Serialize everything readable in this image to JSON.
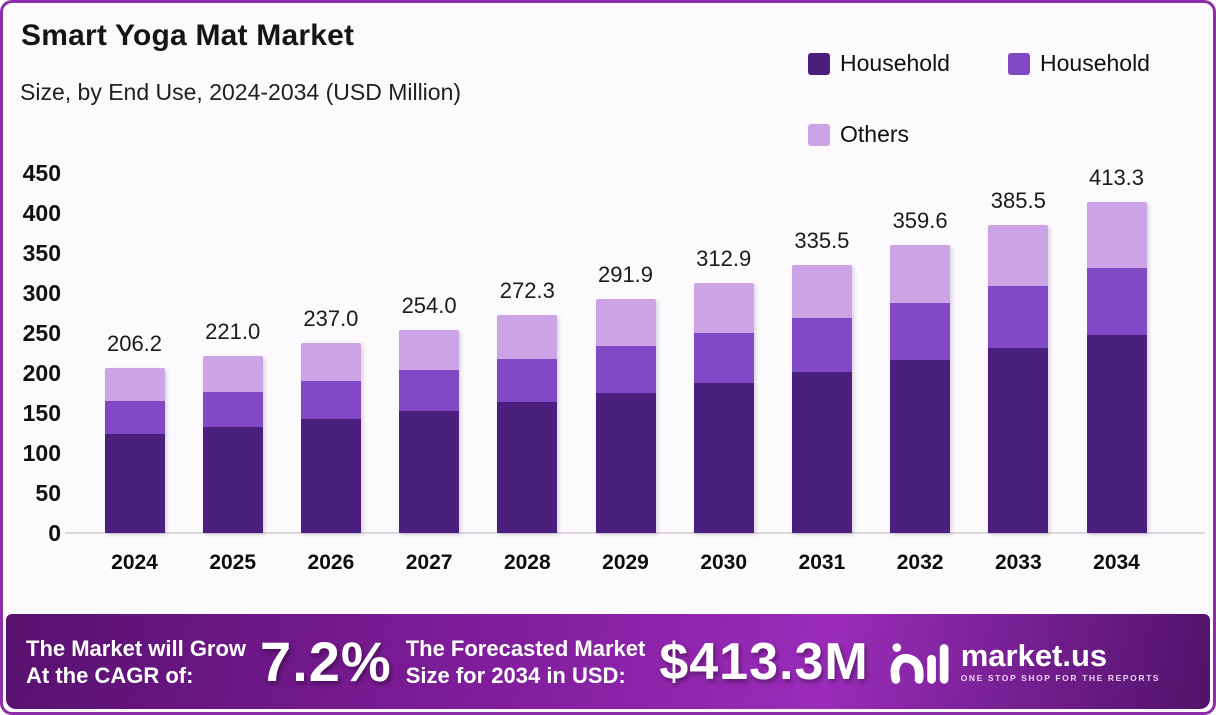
{
  "header": {
    "title": "Smart Yoga Mat Market",
    "subtitle": "Size, by End Use, 2024-2034 (USD Million)"
  },
  "legend": {
    "items": [
      {
        "label": "Household",
        "color": "#4B1F7E"
      },
      {
        "label": "Household",
        "color": "#8149C5"
      },
      {
        "label": "Others",
        "color": "#CCA4E5"
      }
    ]
  },
  "chart_data": {
    "type": "bar",
    "stacked": true,
    "title": "Smart Yoga Mat Market",
    "subtitle": "Size, by End Use, 2024-2034 (USD Million)",
    "unit": "USD Million",
    "ylim": [
      0,
      450
    ],
    "yticks": [
      0,
      50,
      100,
      150,
      200,
      250,
      300,
      350,
      400,
      450
    ],
    "grid": false,
    "legend_position": "top-right",
    "categories": [
      "2024",
      "2025",
      "2026",
      "2027",
      "2028",
      "2029",
      "2030",
      "2031",
      "2032",
      "2033",
      "2034"
    ],
    "totals": [
      206.2,
      221.0,
      237.0,
      254.0,
      272.3,
      291.9,
      312.9,
      335.5,
      359.6,
      385.5,
      413.3
    ],
    "total_labels": [
      "206.2",
      "221.0",
      "237.0",
      "254.0",
      "272.3",
      "291.9",
      "312.9",
      "335.5",
      "359.6",
      "385.5",
      "413.3"
    ],
    "series": [
      {
        "name": "Household",
        "color": "#4B1F7E",
        "values": [
          123.7,
          132.6,
          142.2,
          152.4,
          163.4,
          175.1,
          187.7,
          201.3,
          215.8,
          231.3,
          248.0
        ]
      },
      {
        "name": "Household",
        "color": "#8149C5",
        "values": [
          41.2,
          44.2,
          47.4,
          50.8,
          54.5,
          58.4,
          62.6,
          67.1,
          71.9,
          77.1,
          82.7
        ]
      },
      {
        "name": "Others",
        "color": "#CCA4E5",
        "values": [
          41.3,
          44.2,
          47.4,
          50.8,
          54.4,
          58.4,
          62.6,
          67.1,
          71.9,
          77.1,
          82.6
        ]
      }
    ]
  },
  "banner": {
    "cagr_label_line1": "The Market will Grow",
    "cagr_label_line2": "At the CAGR of:",
    "cagr_value": "7.2%",
    "forecast_label_line1": "The Forecasted Market",
    "forecast_label_line2": "Size for 2034 in USD:",
    "forecast_value": "$413.3M",
    "logo_text": "market.us",
    "logo_tagline": "ONE STOP SHOP FOR THE REPORTS"
  },
  "colors": {
    "card_border": "#8C2EA6",
    "card_background": "#FCFAFD",
    "banner_left": "#58116F",
    "banner_mid": "#7E1C99",
    "banner_bright": "#9A2CB9",
    "banner_right": "#51126A",
    "baseline": "#dcd8de"
  }
}
